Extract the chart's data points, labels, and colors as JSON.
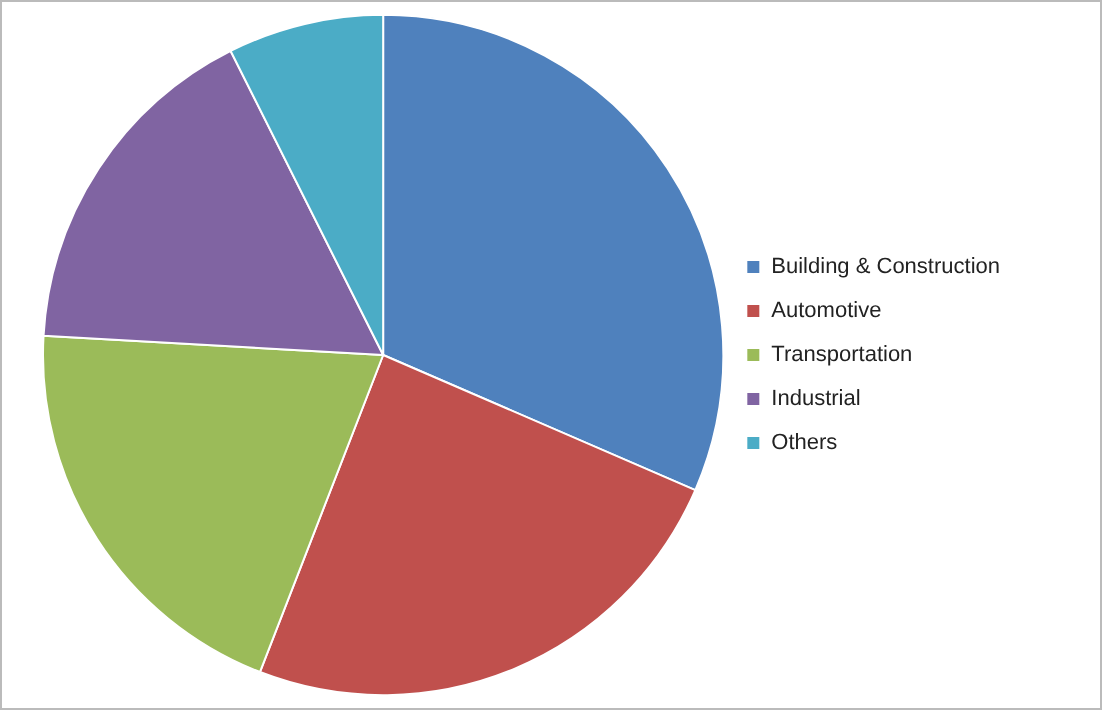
{
  "chart_data": {
    "type": "pie",
    "categories": [
      "Building & Construction",
      "Automotive",
      "Transportation",
      "Industrial",
      "Others"
    ],
    "values": [
      31.5,
      24.4,
      20,
      16.7,
      7.4
    ],
    "colors": [
      "#4f81bd",
      "#c0504d",
      "#9bbb59",
      "#8064a2",
      "#4bacc6"
    ],
    "legend": "right"
  }
}
